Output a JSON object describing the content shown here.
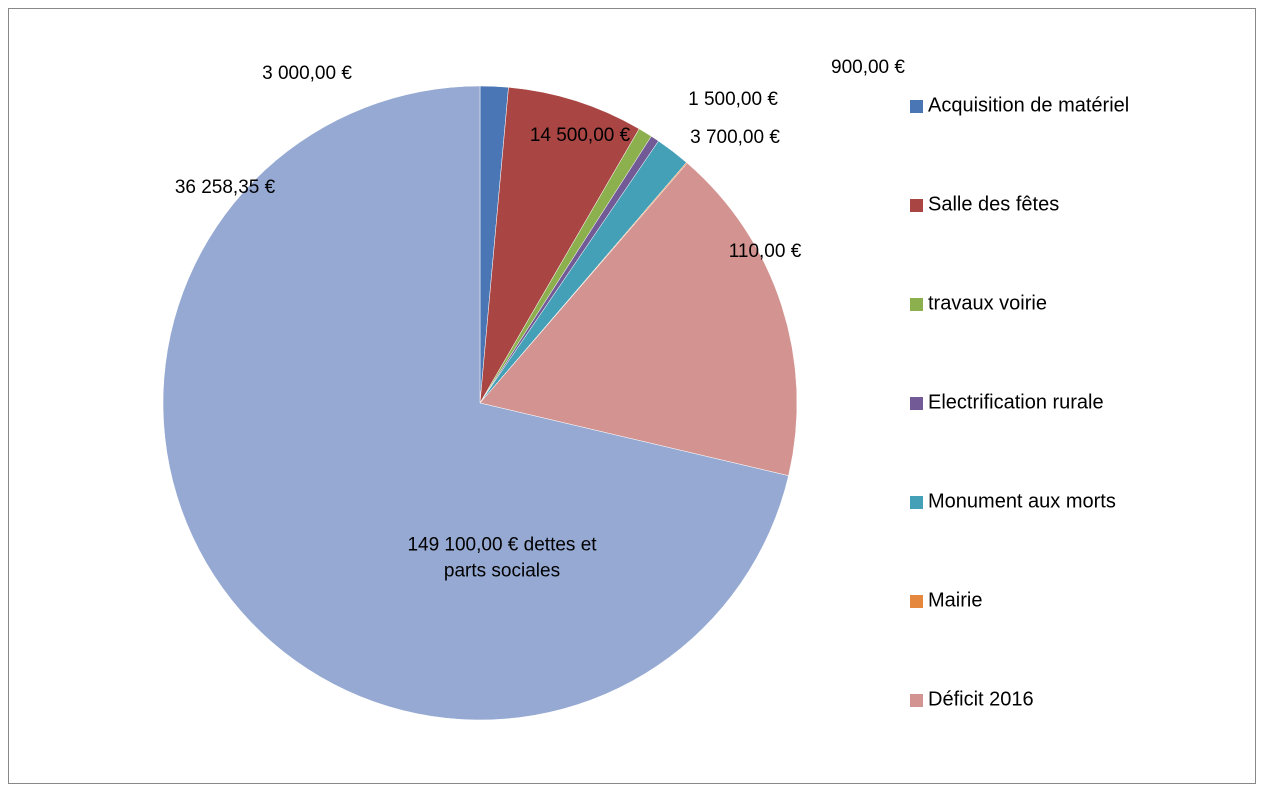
{
  "chart_data": {
    "type": "pie",
    "categories": [
      "Acquisition de matériel",
      "Salle des fêtes",
      "travaux voirie",
      "Electrification rurale",
      "Monument aux morts",
      "Mairie",
      "Déficit 2016",
      null
    ],
    "values": [
      3000,
      14500,
      1500,
      900,
      3700,
      110,
      36258.35,
      149100
    ],
    "value_labels": [
      "3 000,00 €",
      "14 500,00 €",
      "1 500,00 €",
      "900,00 €",
      "3 700,00 €",
      "110,00 €",
      "36 258,35 €",
      "149 100,00 € dettes et parts sociales"
    ],
    "colors": [
      "#4a76b5",
      "#a94644",
      "#8db04f",
      "#715a95",
      "#44a0b7",
      "#e5873c",
      "#d39391",
      "#95a9d2"
    ],
    "legend": "right"
  }
}
